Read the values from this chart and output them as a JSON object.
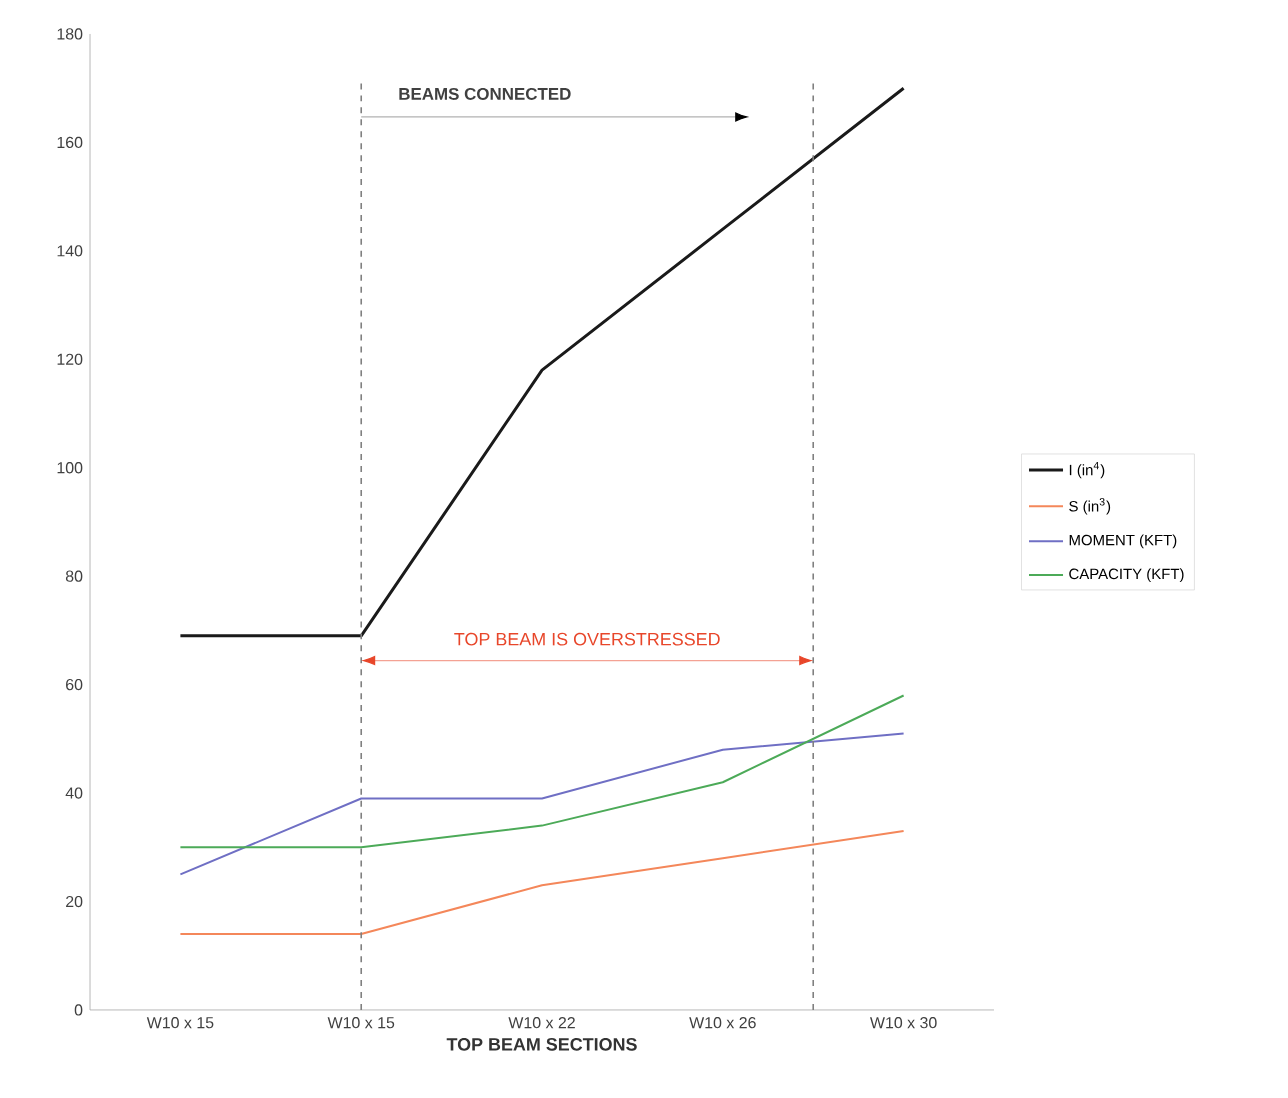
{
  "chart_data": {
    "type": "line",
    "xlabel": "TOP BEAM SECTIONS",
    "categories": [
      "W10 x 15",
      "W10 x 15",
      "W10 x 22",
      "W10 x 26",
      "W10 x 30"
    ],
    "series": [
      {
        "name": "I (in$^{4}$)",
        "color": "#1a1a1a",
        "values": [
          69,
          69,
          118,
          144,
          170
        ]
      },
      {
        "name": "S (in$^{3}$)",
        "color": "#f4875a",
        "values": [
          14,
          14,
          23,
          28,
          33
        ]
      },
      {
        "name": "MOMENT (KFT)",
        "color": "#6f6fc4",
        "values": [
          25,
          39,
          39,
          48,
          51
        ]
      },
      {
        "name": "CAPACITY (KFT)",
        "color": "#4caa58",
        "values": [
          30,
          30,
          34,
          42,
          58
        ]
      }
    ],
    "ylim": [
      0,
      180
    ],
    "yticks": [
      0,
      20,
      40,
      60,
      80,
      100,
      120,
      140,
      160,
      180
    ],
    "annotations": [
      "BEAMS CONNECTED",
      "TOP BEAM IS OVERSTRESSED"
    ],
    "legend": "right",
    "marker": "none",
    "line_style": "solid"
  }
}
